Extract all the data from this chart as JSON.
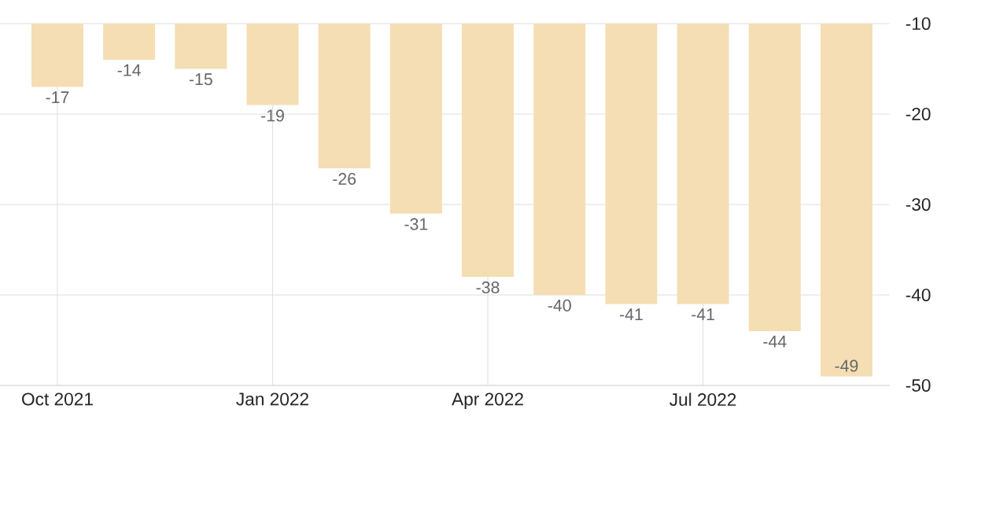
{
  "chart_data": {
    "type": "bar",
    "categories": [
      "Oct 2021",
      null,
      null,
      "Jan 2022",
      null,
      null,
      "Apr 2022",
      null,
      null,
      "Jul 2022",
      null,
      null
    ],
    "values": [
      -17,
      -14,
      -15,
      -19,
      -26,
      -31,
      -38,
      -40,
      -41,
      -41,
      -44,
      -49
    ],
    "color": "#f5deb3",
    "ylim": [
      -50,
      -10
    ],
    "yticks": [
      -10,
      -20,
      -30,
      -40,
      -50
    ],
    "grid": true,
    "data_labels": true
  }
}
